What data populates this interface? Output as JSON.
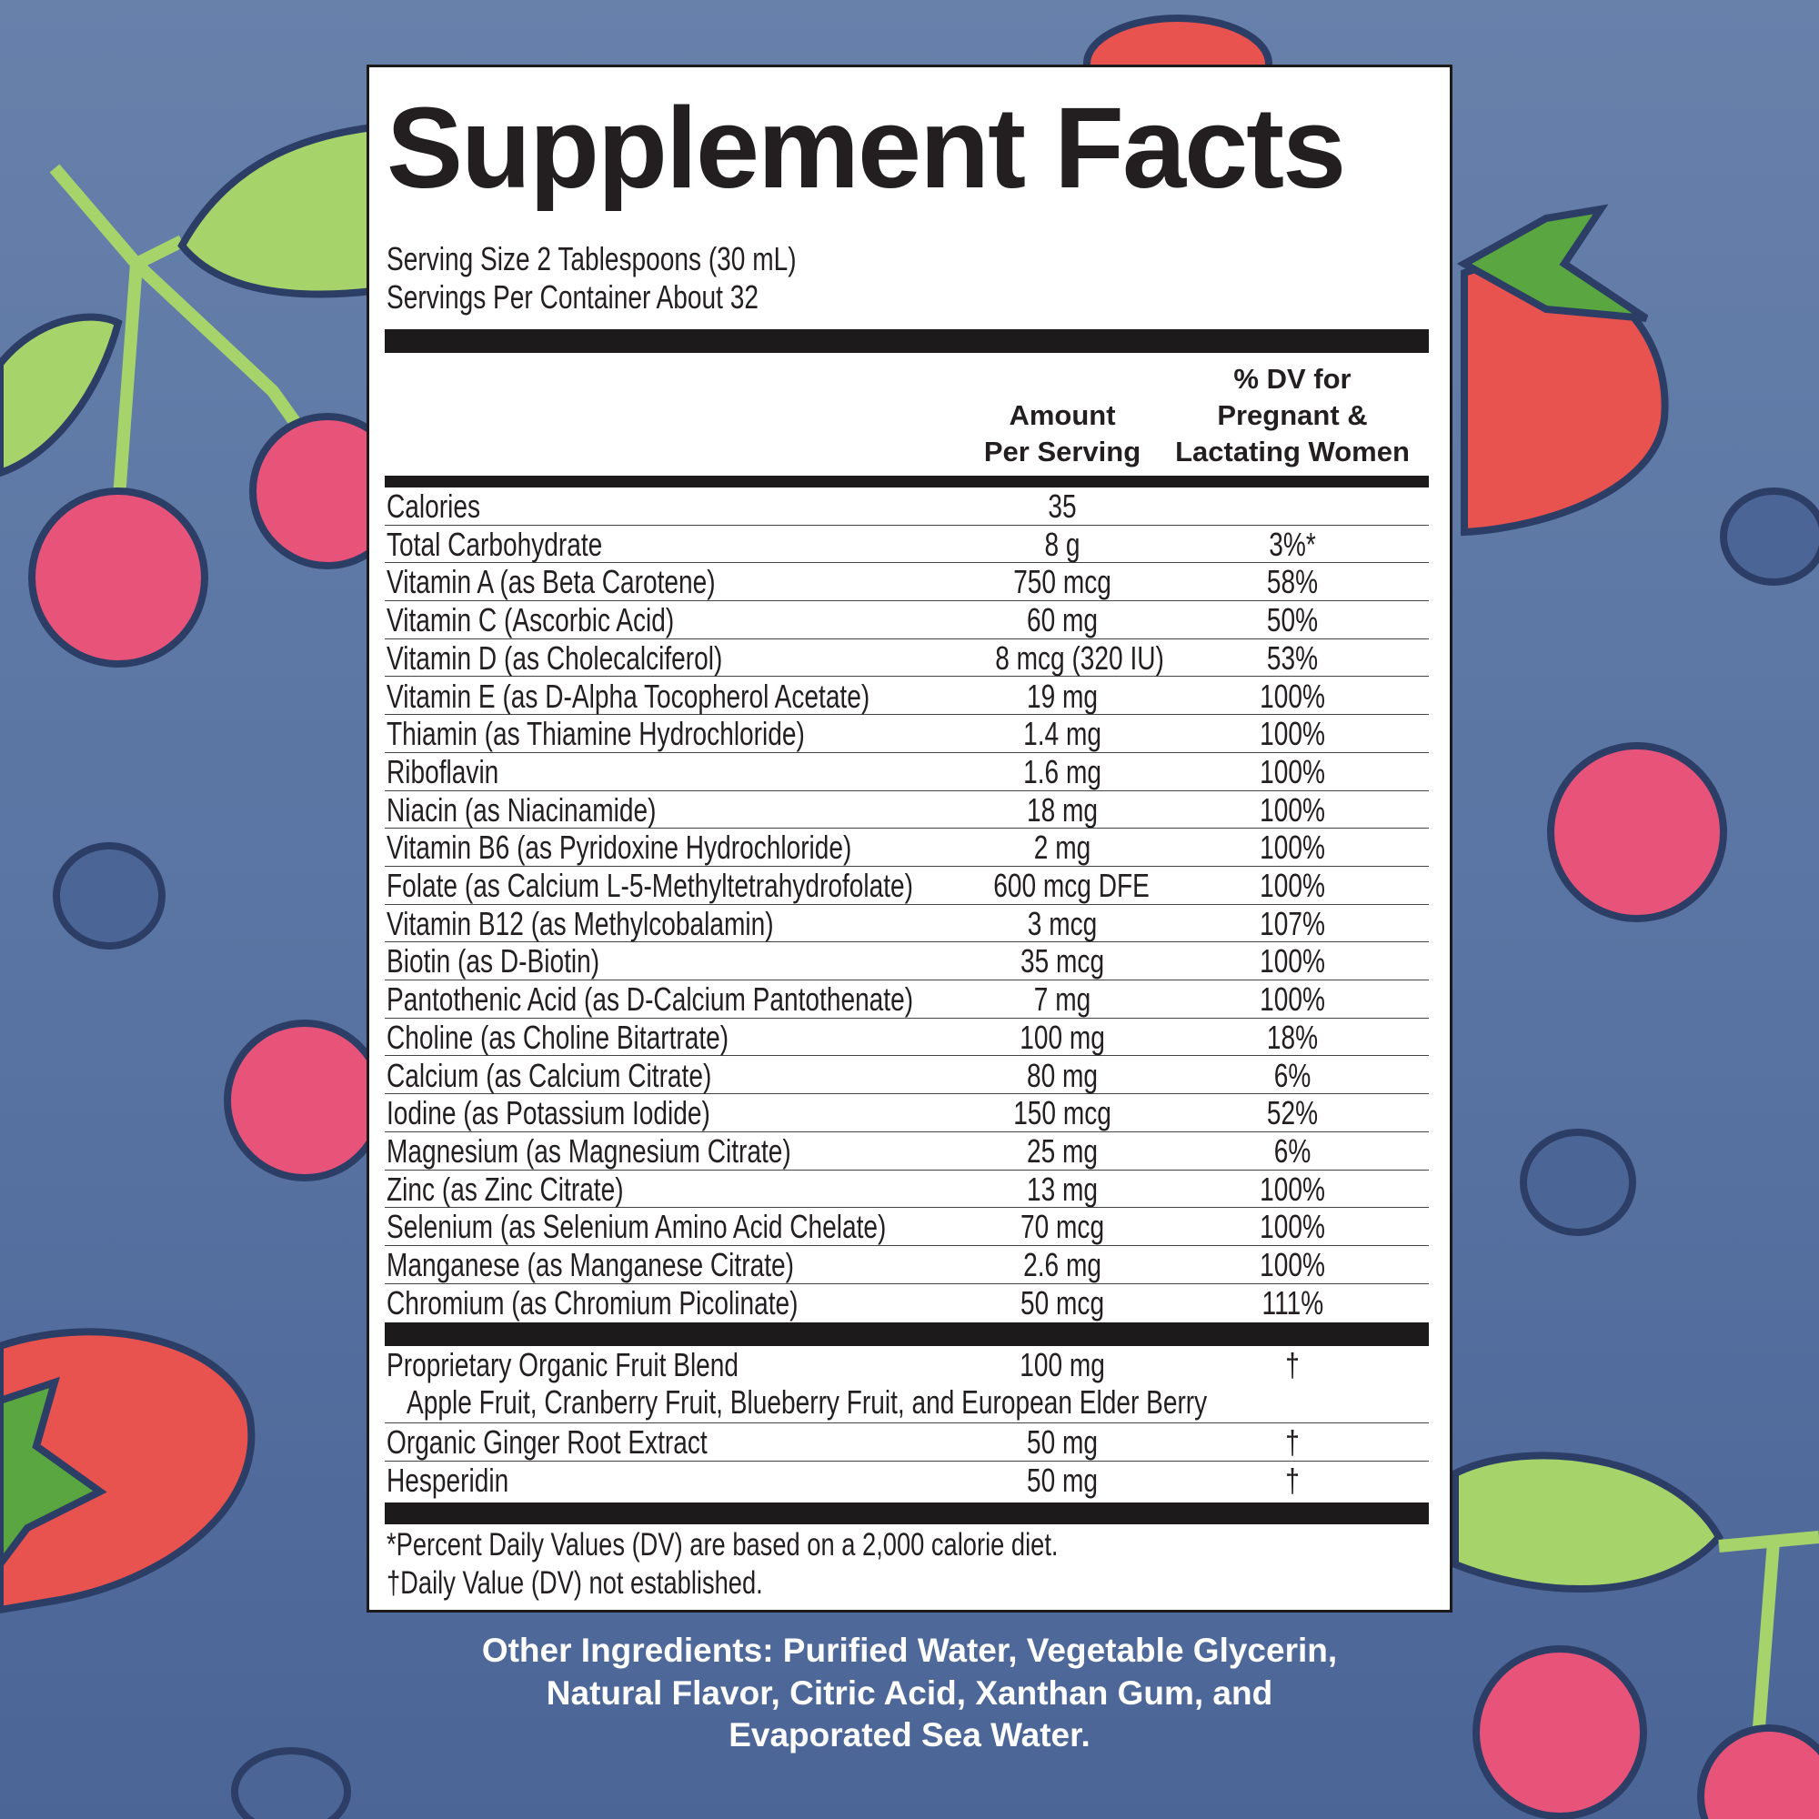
{
  "title": "Supplement Facts",
  "serving_size": "Serving Size 2 Tablespoons (30 mL)",
  "servings_per_container": "Servings Per Container About 32",
  "header": {
    "amount_line1": "Amount",
    "amount_line2": "Per Serving",
    "dv_line1": "% DV for",
    "dv_line2": "Pregnant &",
    "dv_line3": "Lactating Women"
  },
  "nutrients": [
    {
      "name": "Calories",
      "amount": "35",
      "dv": ""
    },
    {
      "name": "Total Carbohydrate",
      "amount": "8 g",
      "dv": "3%*"
    },
    {
      "name": "Vitamin A (as Beta Carotene)",
      "amount": "750 mcg",
      "dv": "58%"
    },
    {
      "name": "Vitamin C (Ascorbic Acid)",
      "amount": "60 mg",
      "dv": "50%"
    },
    {
      "name": "Vitamin D (as Cholecalciferol)",
      "amount": "8 mcg (320 IU)",
      "dv": "53%"
    },
    {
      "name": "Vitamin E (as D-Alpha Tocopherol Acetate)",
      "amount": "19 mg",
      "dv": "100%"
    },
    {
      "name": "Thiamin (as Thiamine Hydrochloride)",
      "amount": "1.4 mg",
      "dv": "100%"
    },
    {
      "name": "Riboflavin",
      "amount": "1.6 mg",
      "dv": "100%"
    },
    {
      "name": "Niacin (as Niacinamide)",
      "amount": "18 mg",
      "dv": "100%"
    },
    {
      "name": "Vitamin B6 (as Pyridoxine Hydrochloride)",
      "amount": "2 mg",
      "dv": "100%"
    },
    {
      "name": "Folate (as Calcium L-5-Methyltetrahydrofolate)",
      "amount": "600 mcg DFE",
      "dv": "100%"
    },
    {
      "name": "Vitamin B12 (as Methylcobalamin)",
      "amount": "3 mcg",
      "dv": "107%"
    },
    {
      "name": "Biotin (as D-Biotin)",
      "amount": "35 mcg",
      "dv": "100%"
    },
    {
      "name": "Pantothenic Acid (as D-Calcium Pantothenate)",
      "amount": "7 mg",
      "dv": "100%"
    },
    {
      "name": "Choline (as Choline Bitartrate)",
      "amount": "100 mg",
      "dv": "18%"
    },
    {
      "name": "Calcium (as Calcium Citrate)",
      "amount": "80 mg",
      "dv": "6%"
    },
    {
      "name": "Iodine (as Potassium Iodide)",
      "amount": "150 mcg",
      "dv": "52%"
    },
    {
      "name": "Magnesium (as Magnesium Citrate)",
      "amount": "25 mg",
      "dv": "6%"
    },
    {
      "name": "Zinc (as Zinc Citrate)",
      "amount": "13 mg",
      "dv": "100%"
    },
    {
      "name": "Selenium (as Selenium Amino Acid Chelate)",
      "amount": "70 mcg",
      "dv": "100%"
    },
    {
      "name": "Manganese (as Manganese Citrate)",
      "amount": "2.6 mg",
      "dv": "100%"
    },
    {
      "name": "Chromium (as Chromium Picolinate)",
      "amount": "50 mcg",
      "dv": "111%"
    }
  ],
  "blend": {
    "name": "Proprietary Organic Fruit Blend",
    "amount": "100 mg",
    "dv": "†",
    "ingredients": "Apple Fruit, Cranberry Fruit, Blueberry Fruit, and European Elder Berry"
  },
  "extras": [
    {
      "name": "Organic Ginger Root Extract",
      "amount": "50 mg",
      "dv": "†"
    },
    {
      "name": "Hesperidin",
      "amount": "50 mg",
      "dv": "†"
    }
  ],
  "footnotes": [
    "*Percent Daily Values (DV) are based on a 2,000 calorie diet.",
    "†Daily Value (DV) not established."
  ],
  "other_ingredients": [
    "Other Ingredients: Purified Water, Vegetable Glycerin,",
    "Natural Flavor, Citric Acid, Xanthan Gum, and",
    "Evaporated Sea Water."
  ],
  "colors": {
    "background_top": "#6781ab",
    "background_bottom": "#4b6597",
    "raspberry": "#e8537a",
    "strawberry": "#e8524f",
    "leaf": "#a6d46a",
    "outline": "#2c3e66",
    "label_ink": "#231f20"
  }
}
